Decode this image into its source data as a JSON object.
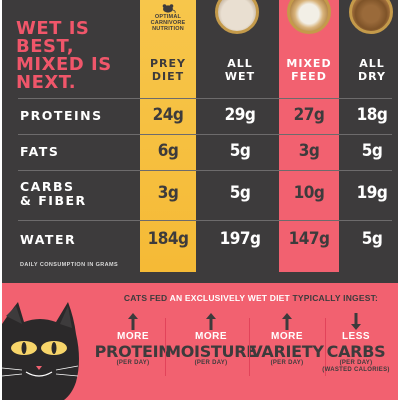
{
  "headline": [
    "WET IS",
    "BEST,",
    "MIXED IS",
    "NEXT."
  ],
  "seal_text": "OPTIMAL CARNIVORE NUTRITION",
  "columns": {
    "prey": "PREY DIET",
    "wet": "ALL WET",
    "mixed": "MIXED FEED",
    "dry": "ALL DRY"
  },
  "rows": [
    {
      "label": "PROTEINS",
      "prey": "24g",
      "wet": "29g",
      "mixed": "27g",
      "dry": "18g"
    },
    {
      "label": "FATS",
      "prey": "6g",
      "wet": "5g",
      "mixed": "3g",
      "dry": "5g"
    },
    {
      "label_line1": "CARBS",
      "label_line2": "& FIBER",
      "prey": "3g",
      "wet": "5g",
      "mixed": "10g",
      "dry": "19g"
    },
    {
      "label": "WATER",
      "prey": "184g",
      "wet": "197g",
      "mixed": "147g",
      "dry": "5g"
    }
  ],
  "footnote": "DAILY CONSUMPTION IN GRAMS",
  "banner": {
    "part1": "CATS FED ",
    "highlight": "AN EXCLUSIVELY WET DIET",
    "part2": " TYPICALLY INGEST:"
  },
  "stats": [
    {
      "pre": "MORE",
      "big": "PROTEIN",
      "sub": "(PER DAY)",
      "direction": "up"
    },
    {
      "pre": "MORE",
      "big": "MOISTURE",
      "sub": "(PER DAY)",
      "direction": "up"
    },
    {
      "pre": "MORE",
      "big": "VARIETY",
      "sub": "(PER DAY)",
      "direction": "up"
    },
    {
      "pre": "LESS",
      "big": "CARBS",
      "sub": "(PER DAY)",
      "sub2": "(WASTED CALORIES)",
      "direction": "down"
    }
  ],
  "colors": {
    "background": "#3d3b3c",
    "accent_pink": "#f26170",
    "accent_gold": "#f5ba36",
    "headline": "#f0566a"
  },
  "icons": {
    "seal": "mouse-icon",
    "cat": "black-cat-illustration",
    "bowls": [
      "wet-food-bowl",
      "mixed-food-bowl",
      "dry-food-bowl"
    ]
  }
}
